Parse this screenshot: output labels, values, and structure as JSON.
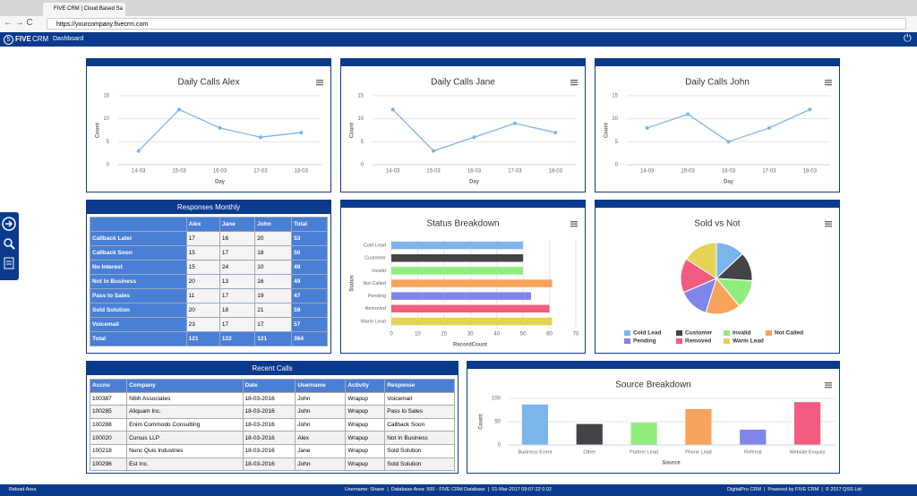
{
  "browser": {
    "tab_title": "FIVE CRM | Cloud Based Sa",
    "url": "https://yourcompany.fivecrm.com"
  },
  "nav": {
    "logo_five": "FIVE",
    "logo_crm": "CRM",
    "item": "Dashboard"
  },
  "chart_data": [
    {
      "type": "line",
      "title": "Daily Calls Alex",
      "x_label": "Day",
      "y_label": "Count",
      "categories": [
        "14-03",
        "15-03",
        "16-03",
        "17-03",
        "18-03"
      ],
      "values": [
        3,
        12,
        8,
        6,
        7
      ],
      "color": "#7cb5ec",
      "ylim": [
        0,
        15
      ],
      "yticks": [
        0,
        5,
        10,
        15
      ],
      "grid": true
    },
    {
      "type": "line",
      "title": "Daily Calls Jane",
      "x_label": "Day",
      "y_label": "Count",
      "categories": [
        "14-03",
        "15-03",
        "16-03",
        "17-03",
        "18-03"
      ],
      "values": [
        12,
        3,
        6,
        9,
        7
      ],
      "color": "#7cb5ec",
      "ylim": [
        0,
        15
      ],
      "yticks": [
        0,
        5,
        10,
        15
      ],
      "grid": true
    },
    {
      "type": "line",
      "title": "Daily Calls John",
      "x_label": "Day",
      "y_label": "Count",
      "categories": [
        "14-03",
        "15-03",
        "16-03",
        "17-03",
        "18-03"
      ],
      "values": [
        8,
        11,
        5,
        8,
        12
      ],
      "color": "#7cb5ec",
      "ylim": [
        0,
        15
      ],
      "yticks": [
        0,
        5,
        10,
        15
      ],
      "grid": true
    },
    {
      "type": "hbar",
      "title": "Status Breakdown",
      "x_label": "RecordCount",
      "y_label": "Status",
      "categories": [
        "Cold Lead",
        "Customer",
        "Invalid",
        "Not Called",
        "Pending",
        "Removed",
        "Warm Lead"
      ],
      "values": [
        50,
        50,
        50,
        61,
        53,
        60,
        61
      ],
      "colors": [
        "#7cb5ec",
        "#434348",
        "#90ed7d",
        "#f7a35c",
        "#8085e9",
        "#f15c80",
        "#e4d354"
      ],
      "xlim": [
        0,
        70
      ],
      "xticks": [
        0,
        10,
        20,
        30,
        40,
        50,
        60,
        70
      ],
      "grid": true
    },
    {
      "type": "pie",
      "title": "Sold vs Not",
      "categories": [
        "Cold Lead",
        "Customer",
        "Invalid",
        "Not Called",
        "Pending",
        "Removed",
        "Warm Lead"
      ],
      "values": [
        50,
        50,
        50,
        61,
        53,
        60,
        61
      ],
      "colors": [
        "#7cb5ec",
        "#434348",
        "#90ed7d",
        "#f7a35c",
        "#8085e9",
        "#f15c80",
        "#e4d354"
      ],
      "legend": "bottom"
    },
    {
      "type": "bar",
      "title": "Source Breakdown",
      "x_label": "Source",
      "y_label": "Count",
      "categories": [
        "Business Event",
        "Other",
        "Partner Lead",
        "Phone Lead",
        "Referral",
        "Website Enquiry"
      ],
      "values": [
        87,
        45,
        48,
        77,
        33,
        92
      ],
      "colors": [
        "#7cb5ec",
        "#434348",
        "#90ed7d",
        "#f7a35c",
        "#8085e9",
        "#f15c80"
      ],
      "ylim": [
        0,
        100
      ],
      "yticks": [
        0,
        50,
        100
      ],
      "grid": true
    }
  ],
  "responses": {
    "title": "Responses Monthly",
    "columns": [
      "Alex",
      "Jane",
      "John",
      "Total"
    ],
    "rows": [
      [
        "Callback Later",
        "17",
        "16",
        "20",
        "53"
      ],
      [
        "Callback Soon",
        "15",
        "17",
        "18",
        "50"
      ],
      [
        "No Interest",
        "15",
        "24",
        "10",
        "49"
      ],
      [
        "Not In Business",
        "20",
        "13",
        "16",
        "49"
      ],
      [
        "Pass to Sales",
        "11",
        "17",
        "19",
        "47"
      ],
      [
        "Sold Solution",
        "20",
        "18",
        "21",
        "59"
      ],
      [
        "Voicemail",
        "23",
        "17",
        "17",
        "57"
      ]
    ],
    "total": [
      "Total",
      "121",
      "122",
      "121",
      "364"
    ]
  },
  "recent": {
    "title": "Recent Calls",
    "columns": [
      "Accno",
      "Company",
      "Date",
      "Username",
      "Activity",
      "Response"
    ],
    "rows": [
      [
        "100387",
        "Nibh Associates",
        "18-03-2016",
        "John",
        "Wrapup",
        "Voicemail"
      ],
      [
        "100285",
        "Aliquam Inc.",
        "18-03-2016",
        "John",
        "Wrapup",
        "Pass to Sales"
      ],
      [
        "100288",
        "Enim Commodo Consulting",
        "18-03-2016",
        "John",
        "Wrapup",
        "Callback Soon"
      ],
      [
        "100020",
        "Cursus LLP",
        "18-03-2016",
        "Alex",
        "Wrapup",
        "Not In Business"
      ],
      [
        "100218",
        "Nunc Quis Industries",
        "18-03-2016",
        "Jane",
        "Wrapup",
        "Sold Solution"
      ],
      [
        "100296",
        "Est Inc.",
        "18-03-2016",
        "John",
        "Wrapup",
        "Sold Solution"
      ]
    ]
  },
  "footer": {
    "reload": "Reload Area",
    "status": "Username: Shane  |  Database Area: 500 - FIVE CRM Database  |  01-Mar-2017 09:07:22 0.02",
    "powered": "DigitalPro CRM  |  Powered by FIVE CRM  |  © 2017 QSS Ltd"
  }
}
